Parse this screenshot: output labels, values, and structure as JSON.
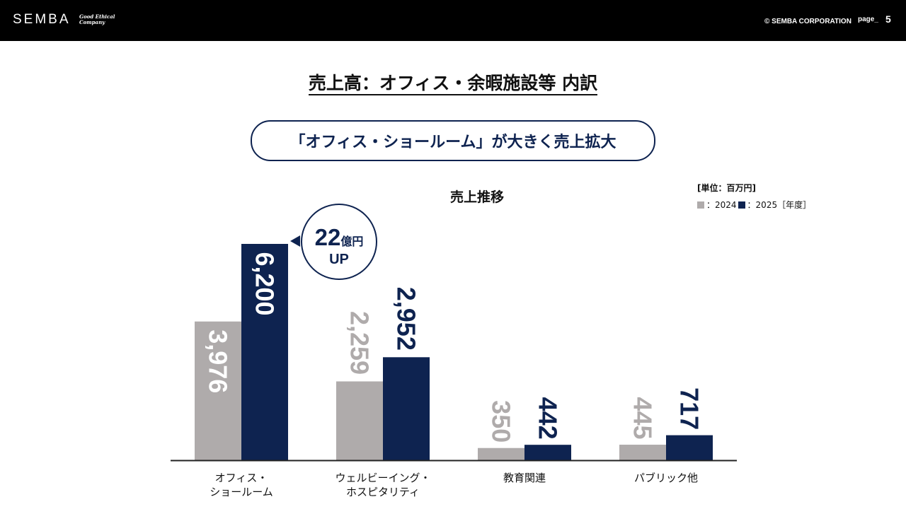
{
  "header": {
    "logo": "SEMBA",
    "tagline": "Good Ethical Company",
    "copyright": "© SEMBA CORPORATION",
    "page_label": "page_",
    "page_number": "5"
  },
  "title": "売上高：オフィス・余暇施設等 内訳",
  "headline": "「オフィス・ショールーム」が大きく売上拡大",
  "callout": {
    "amount": "22",
    "unit": "億円",
    "direction": "UP"
  },
  "chart_data": {
    "type": "bar",
    "title": "売上推移",
    "unit_label": "[単位：百万円]",
    "legend_suffix": "［年度］",
    "categories": [
      "オフィス・\nショールーム",
      "ウェルビーイング・\nホスピタリティ",
      "教育関連",
      "パブリック他"
    ],
    "series": [
      {
        "name": "2024",
        "legend": "：2024",
        "color": "#afabab",
        "values": [
          3976,
          2259,
          350,
          445
        ],
        "labels": [
          "3,976",
          "2,259",
          "350",
          "445"
        ]
      },
      {
        "name": "2025",
        "legend": "：2025",
        "color": "#0e2350",
        "values": [
          6200,
          2952,
          442,
          717
        ],
        "labels": [
          "6,200",
          "2,952",
          "442",
          "717"
        ]
      }
    ],
    "ylim": [
      0,
      6200
    ]
  }
}
